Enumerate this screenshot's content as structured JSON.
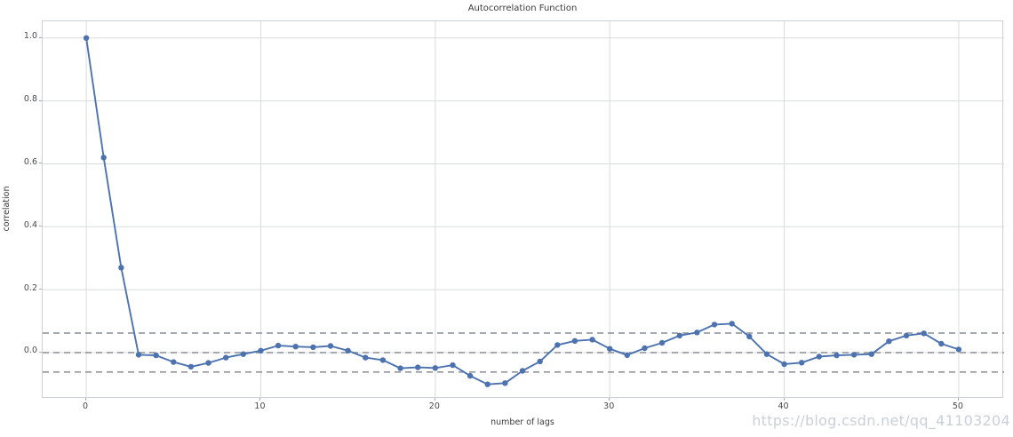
{
  "figure": {
    "title": "Autocorrelation Function",
    "watermark": "https://blog.csdn.net/qq_41103204"
  },
  "colors": {
    "background": "#ffffff",
    "line": "#4c72b0",
    "marker": "#4c72b0",
    "grid": "#d8dbde",
    "spine": "#cdd0d4",
    "confidence_dash": "#898e93",
    "text": "#3b3b3b",
    "tick_text": "#4a4a4a",
    "watermark": "#c7ced7"
  },
  "chart_data": {
    "type": "line",
    "title": "Autocorrelation Function",
    "xlabel": "number of lags",
    "ylabel": "correlation",
    "marker": "circle",
    "grid": true,
    "legend_position": "none",
    "x": [
      0,
      1,
      2,
      3,
      4,
      5,
      6,
      7,
      8,
      9,
      10,
      11,
      12,
      13,
      14,
      15,
      16,
      17,
      18,
      19,
      20,
      21,
      22,
      23,
      24,
      25,
      26,
      27,
      28,
      29,
      30,
      31,
      32,
      33,
      34,
      35,
      36,
      37,
      38,
      39,
      40,
      41,
      42,
      43,
      44,
      45,
      46,
      47,
      48,
      49,
      50
    ],
    "values": [
      1.0,
      0.62,
      0.27,
      -0.007,
      -0.009,
      -0.03,
      -0.045,
      -0.033,
      -0.016,
      -0.005,
      0.006,
      0.022,
      0.019,
      0.017,
      0.021,
      0.006,
      -0.016,
      -0.024,
      -0.05,
      -0.047,
      -0.049,
      -0.04,
      -0.074,
      -0.101,
      -0.097,
      -0.058,
      -0.028,
      0.024,
      0.037,
      0.041,
      0.012,
      -0.008,
      0.014,
      0.031,
      0.054,
      0.064,
      0.089,
      0.092,
      0.051,
      -0.005,
      -0.037,
      -0.032,
      -0.013,
      -0.009,
      -0.007,
      -0.005,
      0.036,
      0.054,
      0.061,
      0.028,
      0.01
    ],
    "xticks": [
      0,
      10,
      20,
      30,
      40,
      50
    ],
    "xtick_labels": [
      "0",
      "10",
      "20",
      "30",
      "40",
      "50"
    ],
    "yticks": [
      0.0,
      0.2,
      0.4,
      0.6,
      0.8,
      1.0
    ],
    "ytick_labels": [
      "0.0",
      "0.2",
      "0.4",
      "0.6",
      "0.8",
      "1.0"
    ],
    "xlim": [
      -2.5,
      52.6
    ],
    "ylim": [
      -0.147,
      1.053
    ],
    "confidence_bounds": {
      "upper": 0.062,
      "zero": 0.0,
      "lower": -0.062,
      "style": "dashed"
    }
  }
}
